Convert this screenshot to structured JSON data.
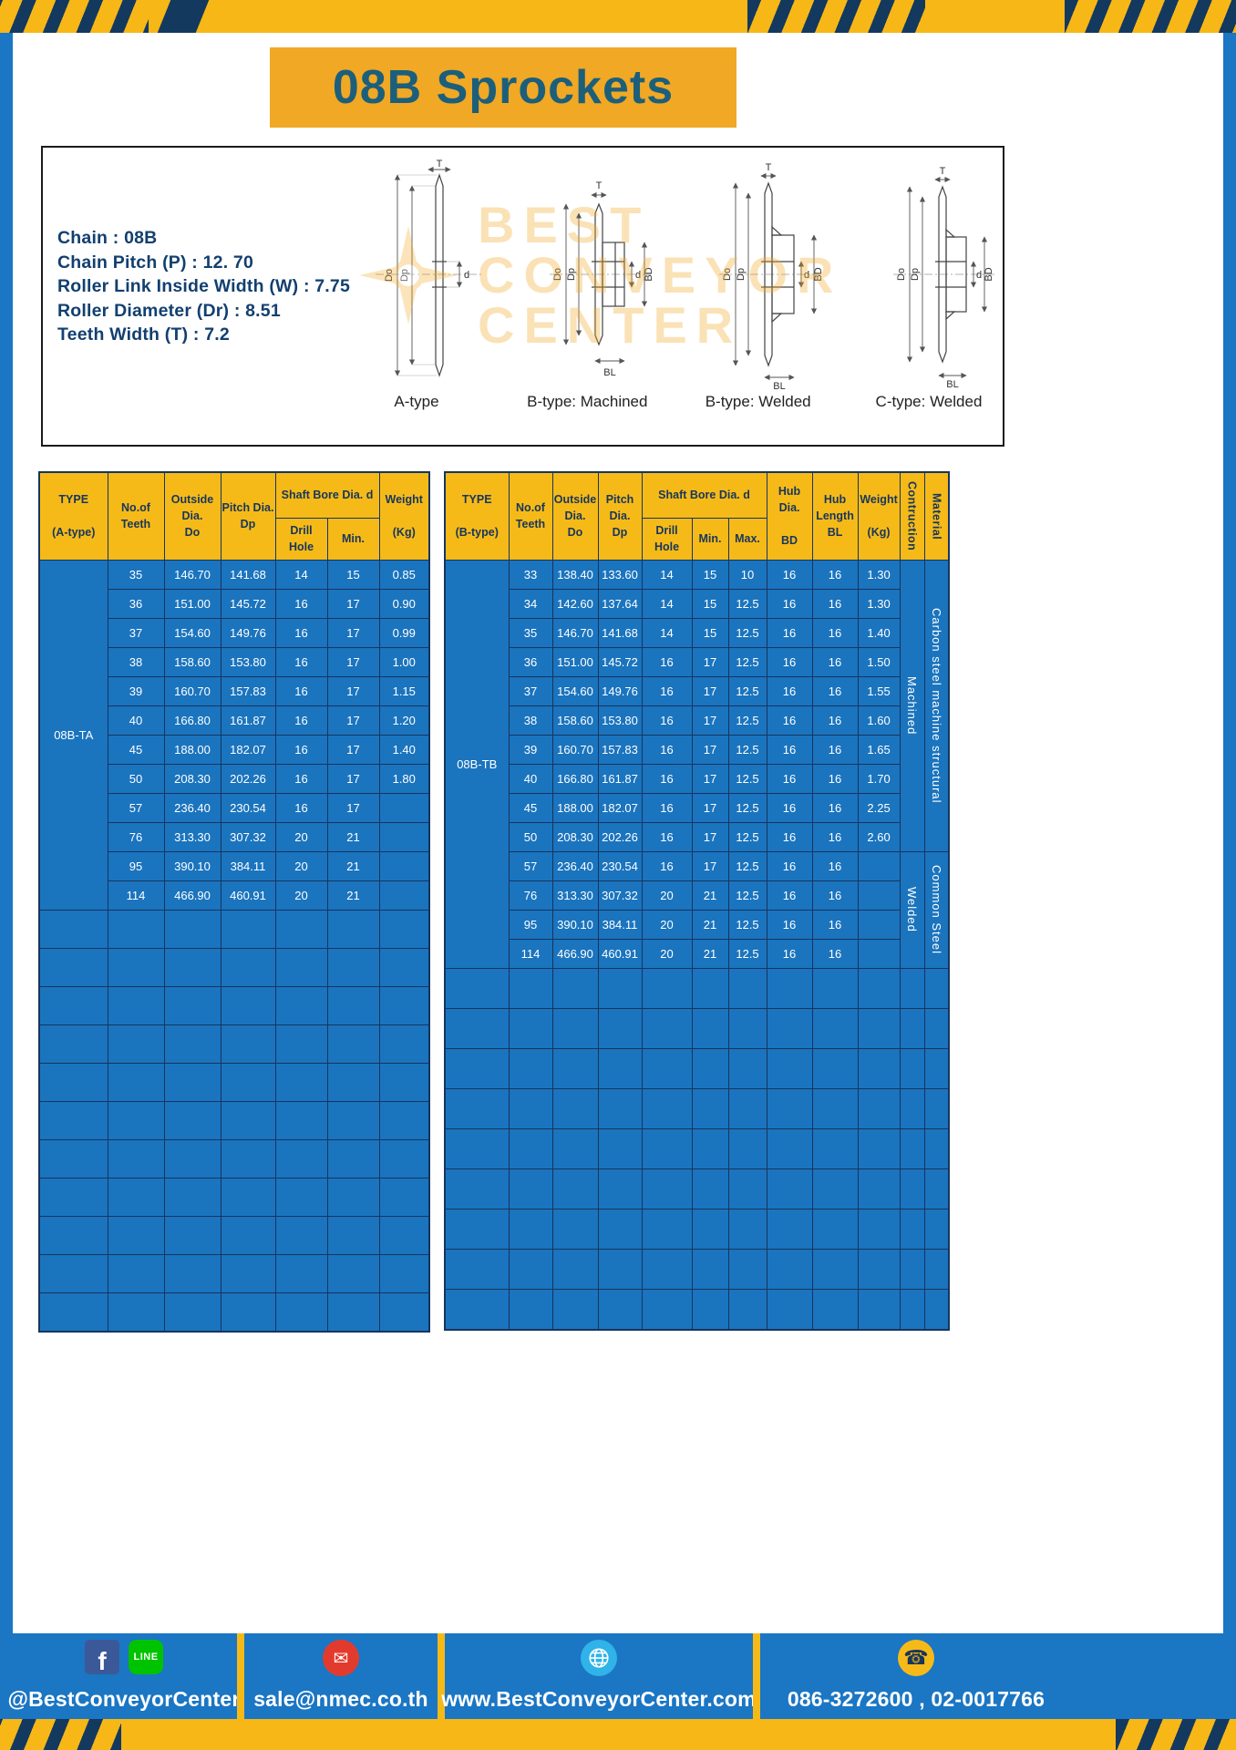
{
  "page": {
    "title": "08B Sprockets"
  },
  "colors": {
    "accent_yellow": "#F6BA18",
    "banner_orange": "#F0A825",
    "frame_blue": "#1B76C4",
    "table_cell_blue": "#1B74BE",
    "grid_navy": "#16355F",
    "title_teal": "#1C5F7B",
    "spec_text_navy": "#123F70",
    "stripe_navy": "#14395F"
  },
  "specs": {
    "lines": [
      "Chain : 08B",
      "Chain Pitch (P) : 12. 70",
      "Roller Link Inside Width (W) : 7.75",
      "Roller Diameter (Dr) : 8.51",
      "Teeth Width (T) : 7.2"
    ]
  },
  "watermark": {
    "line1": "BEST",
    "line2": "CONVEYOR",
    "line3": "CENTER"
  },
  "diagrams": [
    {
      "caption": "A-type",
      "labels": [
        "T",
        "Do",
        "Dp",
        "d"
      ]
    },
    {
      "caption": "B-type: Machined",
      "labels": [
        "T",
        "Do",
        "Dp",
        "d",
        "BD",
        "BL"
      ]
    },
    {
      "caption": "B-type: Welded",
      "labels": [
        "T",
        "Do",
        "Dp",
        "d",
        "BD",
        "BL"
      ]
    },
    {
      "caption": "C-type: Welded",
      "labels": [
        "T",
        "Do",
        "Dp",
        "d",
        "BD",
        "BL"
      ]
    }
  ],
  "table_a": {
    "headers": {
      "type": "TYPE\n\n(A-type)",
      "teeth": "No.of\nTeeth",
      "outside": "Outside\nDia.\nDo",
      "pitch": "Pitch Dia.\nDp",
      "shaft": "Shaft Bore Dia. d",
      "drill": "Drill Hole",
      "min": "Min.",
      "weight": "Weight\n\n(Kg)"
    },
    "type_value": "08B-TA",
    "rows": [
      [
        "35",
        "146.70",
        "141.68",
        "14",
        "15",
        "0.85"
      ],
      [
        "36",
        "151.00",
        "145.72",
        "16",
        "17",
        "0.90"
      ],
      [
        "37",
        "154.60",
        "149.76",
        "16",
        "17",
        "0.99"
      ],
      [
        "38",
        "158.60",
        "153.80",
        "16",
        "17",
        "1.00"
      ],
      [
        "39",
        "160.70",
        "157.83",
        "16",
        "17",
        "1.15"
      ],
      [
        "40",
        "166.80",
        "161.87",
        "16",
        "17",
        "1.20"
      ],
      [
        "45",
        "188.00",
        "182.07",
        "16",
        "17",
        "1.40"
      ],
      [
        "50",
        "208.30",
        "202.26",
        "16",
        "17",
        "1.80"
      ],
      [
        "57",
        "236.40",
        "230.54",
        "16",
        "17",
        ""
      ],
      [
        "76",
        "313.30",
        "307.32",
        "20",
        "21",
        ""
      ],
      [
        "95",
        "390.10",
        "384.11",
        "20",
        "21",
        ""
      ],
      [
        "114",
        "466.90",
        "460.91",
        "20",
        "21",
        ""
      ]
    ],
    "empty_rows": 11
  },
  "table_b": {
    "headers": {
      "type": "TYPE\n\n(B-type)",
      "teeth": "No.of\nTeeth",
      "outside": "Outside\nDia.\nDo",
      "pitch": "Pitch Dia.\nDp",
      "shaft": "Shaft Bore Dia. d",
      "drill": "Drill Hole",
      "min": "Min.",
      "max": "Max.",
      "hub_dia": "Hub Dia.\n\nBD",
      "hub_len": "Hub\nLength\nBL",
      "weight": "Weight\n\n(Kg)",
      "construction": "Contruction",
      "material": "Material"
    },
    "type_value": "08B-TB",
    "rows": [
      [
        "33",
        "138.40",
        "133.60",
        "14",
        "15",
        "10",
        "16",
        "16",
        "1.30"
      ],
      [
        "34",
        "142.60",
        "137.64",
        "14",
        "15",
        "12.5",
        "16",
        "16",
        "1.30"
      ],
      [
        "35",
        "146.70",
        "141.68",
        "14",
        "15",
        "12.5",
        "16",
        "16",
        "1.40"
      ],
      [
        "36",
        "151.00",
        "145.72",
        "16",
        "17",
        "12.5",
        "16",
        "16",
        "1.50"
      ],
      [
        "37",
        "154.60",
        "149.76",
        "16",
        "17",
        "12.5",
        "16",
        "16",
        "1.55"
      ],
      [
        "38",
        "158.60",
        "153.80",
        "16",
        "17",
        "12.5",
        "16",
        "16",
        "1.60"
      ],
      [
        "39",
        "160.70",
        "157.83",
        "16",
        "17",
        "12.5",
        "16",
        "16",
        "1.65"
      ],
      [
        "40",
        "166.80",
        "161.87",
        "16",
        "17",
        "12.5",
        "16",
        "16",
        "1.70"
      ],
      [
        "45",
        "188.00",
        "182.07",
        "16",
        "17",
        "12.5",
        "16",
        "16",
        "2.25"
      ],
      [
        "50",
        "208.30",
        "202.26",
        "16",
        "17",
        "12.5",
        "16",
        "16",
        "2.60"
      ],
      [
        "57",
        "236.40",
        "230.54",
        "16",
        "17",
        "12.5",
        "16",
        "16",
        ""
      ],
      [
        "76",
        "313.30",
        "307.32",
        "20",
        "21",
        "12.5",
        "16",
        "16",
        ""
      ],
      [
        "95",
        "390.10",
        "384.11",
        "20",
        "21",
        "12.5",
        "16",
        "16",
        ""
      ],
      [
        "114",
        "466.90",
        "460.91",
        "20",
        "21",
        "12.5",
        "16",
        "16",
        ""
      ]
    ],
    "construction": [
      {
        "label": "Machined",
        "rows": 10
      },
      {
        "label": "Welded",
        "rows": 4
      }
    ],
    "material": [
      {
        "label": "Carbon steel  machine structural",
        "rows": 10
      },
      {
        "label": "Common  Steel",
        "rows": 4
      }
    ],
    "empty_rows": 9
  },
  "footer": {
    "facebook_label": "f",
    "line_label": "LINE",
    "social_handle": "@BestConveyorCenter",
    "mail_glyph": "✉",
    "email": "sale@nmec.co.th",
    "website": "www.BestConveyorCenter.com",
    "phone_glyph": "☎",
    "phone": "086-3272600 , 02-0017766"
  }
}
